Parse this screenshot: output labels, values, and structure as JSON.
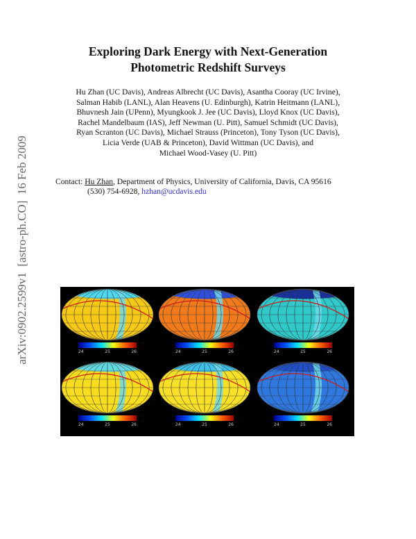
{
  "sidebar": "arXiv:0902.2599v1  [astro-ph.CO]  16 Feb 2009",
  "title": [
    "Exploring Dark Energy with Next-Generation",
    "Photometric Redshift Surveys"
  ],
  "authors": [
    "Hu Zhan (UC Davis), Andreas Albrecht (UC Davis), Asantha Cooray (UC Irvine),",
    "Salman Habib (LANL), Alan Heavens (U. Edinburgh), Katrin Heitmann (LANL),",
    "Bhuvnesh Jain (UPenn), Myungkook J. Jee (UC Davis), Lloyd Knox (UC Davis),",
    "Rachel Mandelbaum (IAS), Jeff Newman (U. Pitt), Samuel Schmidt (UC Davis),",
    "Ryan Scranton (UC Davis), Michael Strauss (Princeton), Tony Tyson (UC Davis),",
    "Licia Verde (UAB & Princeton), David Wittman (UC Davis), and",
    "Michael Wood-Vasey (U. Pitt)"
  ],
  "contact": {
    "label": "Contact:",
    "name": "Hu Zhan",
    "address": ", Department of Physics, University of California, Davis, CA 95616",
    "phone": "(530) 754-6928,",
    "email": "hzhan@ucdavis.edu"
  },
  "figure": {
    "panels": [
      {
        "ticks": [
          "24",
          "25",
          "26"
        ]
      },
      {
        "ticks": [
          "24",
          "25",
          "26"
        ]
      },
      {
        "ticks": [
          "24",
          "25",
          "26"
        ]
      },
      {
        "ticks": [
          "24",
          "25",
          "26"
        ]
      },
      {
        "ticks": [
          "24",
          "25",
          "26"
        ]
      },
      {
        "ticks": [
          "24",
          "25",
          "26"
        ]
      }
    ]
  }
}
